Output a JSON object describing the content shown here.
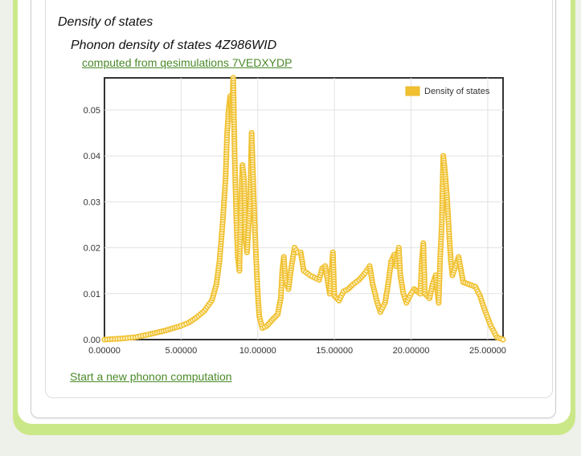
{
  "page": {
    "section_title": "Density of states",
    "chart_title": "Phonon density of states 4Z986WID",
    "source_link": "computed from qesimulations 7VEDXYDP",
    "new_computation_link": "Start a new phonon computation"
  },
  "colors": {
    "series": "#f0c030",
    "series_stroke": "#e8b828",
    "link": "#4a8a2a",
    "frame": "#cbe889"
  },
  "chart_data": {
    "type": "line",
    "xlim": [
      0,
      26
    ],
    "ylim": [
      0,
      0.057
    ],
    "xticks": [
      0,
      5,
      10,
      15,
      20,
      25
    ],
    "xtick_labels": [
      "0.00000",
      "5.00000",
      "10.00000",
      "15.00000",
      "20.00000",
      "25.00000"
    ],
    "yticks": [
      0,
      0.01,
      0.02,
      0.03,
      0.04,
      0.05
    ],
    "ytick_labels": [
      "0.00",
      "0.01",
      "0.02",
      "0.03",
      "0.04",
      "0.05"
    ],
    "grid": true,
    "legend_position": "top-right",
    "series": [
      {
        "name": "Density of states",
        "markers": true,
        "points": [
          [
            0,
            0
          ],
          [
            1,
            0.0002
          ],
          [
            2,
            0.0005
          ],
          [
            3,
            0.0012
          ],
          [
            4,
            0.002
          ],
          [
            5,
            0.003
          ],
          [
            5.5,
            0.0037
          ],
          [
            6,
            0.0048
          ],
          [
            6.5,
            0.0062
          ],
          [
            7,
            0.0085
          ],
          [
            7.3,
            0.012
          ],
          [
            7.5,
            0.017
          ],
          [
            7.7,
            0.025
          ],
          [
            7.9,
            0.035
          ],
          [
            8.0,
            0.045
          ],
          [
            8.1,
            0.05
          ],
          [
            8.2,
            0.053
          ],
          [
            8.3,
            0.048
          ],
          [
            8.4,
            0.057
          ],
          [
            8.5,
            0.039
          ],
          [
            8.6,
            0.026
          ],
          [
            8.7,
            0.018
          ],
          [
            8.8,
            0.015
          ],
          [
            8.9,
            0.028
          ],
          [
            9.0,
            0.038
          ],
          [
            9.1,
            0.035
          ],
          [
            9.2,
            0.022
          ],
          [
            9.3,
            0.019
          ],
          [
            9.5,
            0.03
          ],
          [
            9.6,
            0.045
          ],
          [
            9.7,
            0.035
          ],
          [
            9.8,
            0.025
          ],
          [
            9.9,
            0.017
          ],
          [
            10.0,
            0.01
          ],
          [
            10.1,
            0.005
          ],
          [
            10.3,
            0.0025
          ],
          [
            10.6,
            0.003
          ],
          [
            11.0,
            0.0045
          ],
          [
            11.3,
            0.0055
          ],
          [
            11.5,
            0.009
          ],
          [
            11.6,
            0.015
          ],
          [
            11.7,
            0.018
          ],
          [
            11.8,
            0.013
          ],
          [
            12.0,
            0.011
          ],
          [
            12.2,
            0.016
          ],
          [
            12.4,
            0.02
          ],
          [
            12.6,
            0.019
          ],
          [
            12.8,
            0.019
          ],
          [
            13.0,
            0.015
          ],
          [
            13.4,
            0.014
          ],
          [
            13.7,
            0.0135
          ],
          [
            14.0,
            0.013
          ],
          [
            14.2,
            0.0155
          ],
          [
            14.4,
            0.016
          ],
          [
            14.6,
            0.012
          ],
          [
            14.7,
            0.01
          ],
          [
            14.9,
            0.019
          ],
          [
            15.0,
            0.0095
          ],
          [
            15.3,
            0.0085
          ],
          [
            15.6,
            0.0105
          ],
          [
            15.9,
            0.011
          ],
          [
            16.2,
            0.012
          ],
          [
            16.6,
            0.013
          ],
          [
            17.0,
            0.0145
          ],
          [
            17.3,
            0.016
          ],
          [
            17.5,
            0.012
          ],
          [
            17.8,
            0.008
          ],
          [
            18.0,
            0.006
          ],
          [
            18.3,
            0.008
          ],
          [
            18.5,
            0.012
          ],
          [
            18.7,
            0.017
          ],
          [
            18.9,
            0.0185
          ],
          [
            19.0,
            0.016
          ],
          [
            19.2,
            0.02
          ],
          [
            19.3,
            0.014
          ],
          [
            19.5,
            0.01
          ],
          [
            19.7,
            0.008
          ],
          [
            20.0,
            0.01
          ],
          [
            20.2,
            0.011
          ],
          [
            20.4,
            0.0105
          ],
          [
            20.6,
            0.01
          ],
          [
            20.7,
            0.017
          ],
          [
            20.8,
            0.021
          ],
          [
            20.9,
            0.01
          ],
          [
            21.2,
            0.009
          ],
          [
            21.4,
            0.012
          ],
          [
            21.6,
            0.014
          ],
          [
            21.7,
            0.011
          ],
          [
            21.8,
            0.008
          ],
          [
            21.9,
            0.018
          ],
          [
            22.0,
            0.025
          ],
          [
            22.1,
            0.04
          ],
          [
            22.2,
            0.037
          ],
          [
            22.3,
            0.033
          ],
          [
            22.4,
            0.028
          ],
          [
            22.5,
            0.022
          ],
          [
            22.6,
            0.017
          ],
          [
            22.7,
            0.014
          ],
          [
            22.9,
            0.016
          ],
          [
            23.1,
            0.018
          ],
          [
            23.4,
            0.0125
          ],
          [
            23.8,
            0.012
          ],
          [
            24.2,
            0.0115
          ],
          [
            24.5,
            0.0095
          ],
          [
            24.8,
            0.0065
          ],
          [
            25.2,
            0.003
          ],
          [
            25.6,
            0.0005
          ],
          [
            26,
            0
          ]
        ]
      }
    ]
  }
}
